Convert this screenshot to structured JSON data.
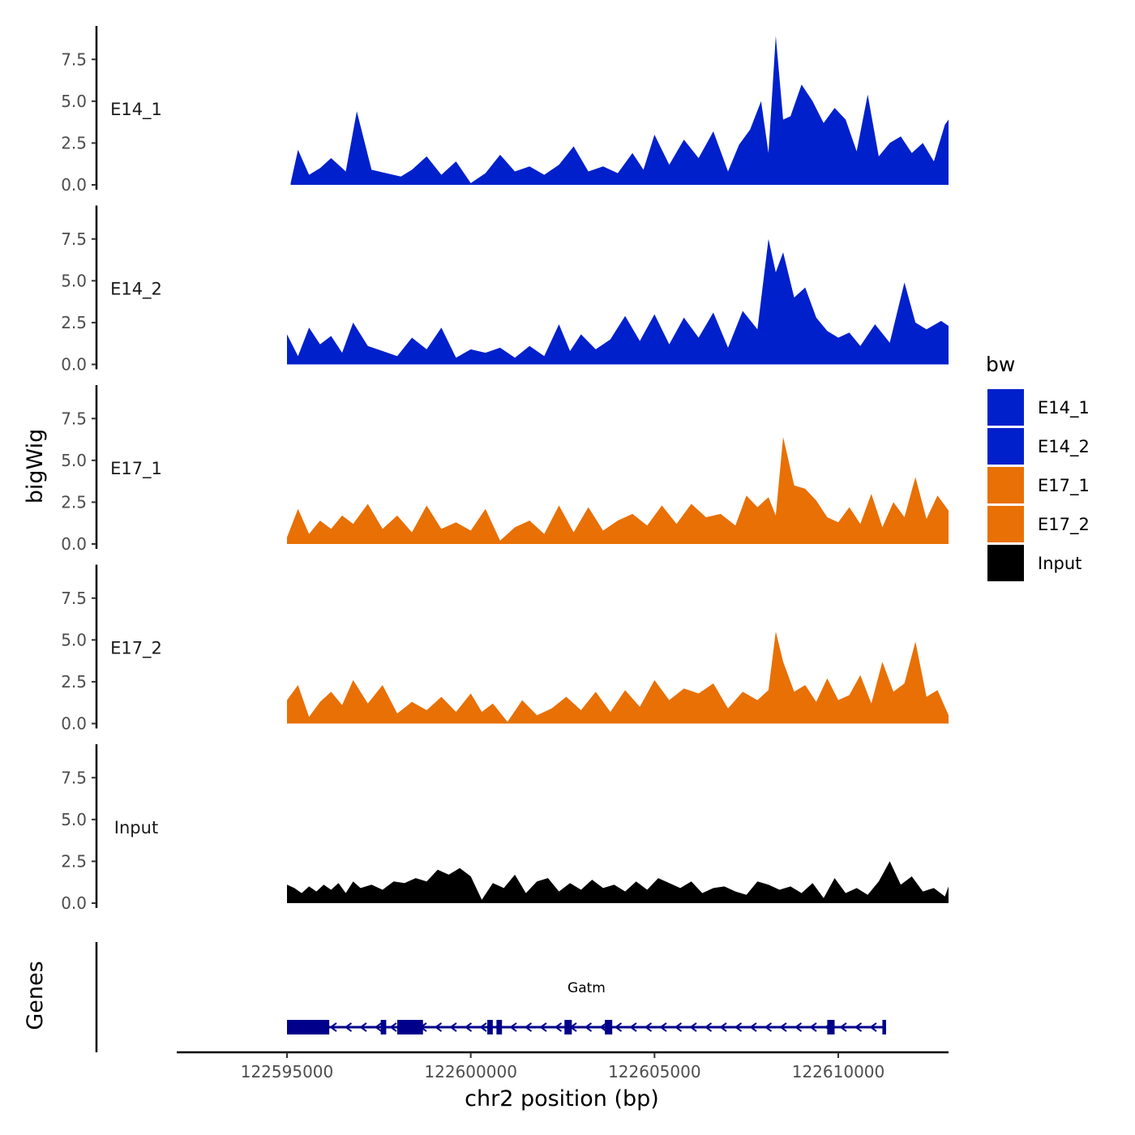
{
  "chart_data": {
    "type": "area",
    "title": "",
    "xlabel": "chr2 position (bp)",
    "ylabel": "bigWig",
    "genes_label": "Genes",
    "xlim": [
      122592000,
      122613000
    ],
    "x_ticks": [
      122595000,
      122600000,
      122605000,
      122610000
    ],
    "x_tick_labels": [
      "122595000",
      "122600000",
      "122605000",
      "122610000"
    ],
    "ylim": [
      0,
      9.5
    ],
    "y_ticks": [
      0,
      2.5,
      5,
      7.5
    ],
    "y_tick_labels": [
      "0.0",
      "2.5",
      "5.0",
      "7.5"
    ],
    "legend": {
      "title": "bw",
      "position": "right",
      "entries": [
        {
          "label": "E14_1",
          "color": "#0020cc"
        },
        {
          "label": "E14_2",
          "color": "#0020cc"
        },
        {
          "label": "E17_1",
          "color": "#e87005"
        },
        {
          "label": "E17_2",
          "color": "#e87005"
        },
        {
          "label": "Input",
          "color": "#000000"
        }
      ]
    },
    "series": [
      {
        "name": "E14_1",
        "color": "#0020cc",
        "x": [
          122595100,
          122595300,
          122595600,
          122595900,
          122596200,
          122596600,
          122596900,
          122597300,
          122597700,
          122598100,
          122598400,
          122598800,
          122599200,
          122599600,
          122600000,
          122600400,
          122600800,
          122601200,
          122601600,
          122602000,
          122602400,
          122602800,
          122603200,
          122603600,
          122604000,
          122604400,
          122604700,
          122605000,
          122605400,
          122605800,
          122606200,
          122606600,
          122607000,
          122607300,
          122607600,
          122607900,
          122608100,
          122608300,
          122608500,
          122608700,
          122609000,
          122609300,
          122609600,
          122609900,
          122610200,
          122610500,
          122610800,
          122611100,
          122611400,
          122611700,
          122612000,
          122612300,
          122612600,
          122612900,
          122613000
        ],
        "values": [
          0.1,
          2.1,
          0.6,
          1.0,
          1.6,
          0.8,
          4.4,
          0.9,
          0.7,
          0.5,
          0.9,
          1.7,
          0.6,
          1.4,
          0.1,
          0.7,
          1.8,
          0.8,
          1.1,
          0.6,
          1.2,
          2.3,
          0.8,
          1.1,
          0.7,
          1.9,
          0.9,
          3.0,
          1.2,
          2.7,
          1.6,
          3.2,
          0.8,
          2.4,
          3.3,
          5.0,
          1.9,
          8.9,
          3.9,
          4.1,
          6.0,
          5.0,
          3.7,
          4.6,
          3.9,
          2.0,
          5.4,
          1.7,
          2.5,
          2.9,
          1.9,
          2.5,
          1.4,
          3.6,
          3.9
        ]
      },
      {
        "name": "E14_2",
        "color": "#0020cc",
        "x": [
          122595000,
          122595300,
          122595600,
          122595900,
          122596200,
          122596500,
          122596800,
          122597200,
          122597600,
          122598000,
          122598400,
          122598800,
          122599200,
          122599600,
          122600000,
          122600400,
          122600800,
          122601200,
          122601600,
          122602000,
          122602400,
          122602700,
          122603000,
          122603400,
          122603800,
          122604200,
          122604600,
          122605000,
          122605400,
          122605800,
          122606200,
          122606600,
          122607000,
          122607400,
          122607800,
          122608100,
          122608300,
          122608500,
          122608800,
          122609100,
          122609400,
          122609700,
          122610000,
          122610300,
          122610600,
          122611000,
          122611400,
          122611800,
          122612100,
          122612400,
          122612800,
          122613000
        ],
        "values": [
          1.8,
          0.5,
          2.2,
          1.2,
          1.7,
          0.7,
          2.5,
          1.1,
          0.8,
          0.5,
          1.6,
          0.9,
          2.2,
          0.4,
          0.9,
          0.7,
          1.0,
          0.4,
          1.1,
          0.5,
          2.4,
          0.8,
          1.8,
          0.9,
          1.5,
          2.9,
          1.4,
          3.0,
          1.2,
          2.8,
          1.6,
          3.1,
          1.0,
          3.2,
          2.1,
          7.5,
          5.5,
          6.7,
          4.0,
          4.6,
          2.8,
          2.0,
          1.6,
          1.9,
          1.1,
          2.4,
          1.3,
          4.9,
          2.5,
          2.1,
          2.6,
          2.3
        ]
      },
      {
        "name": "E17_1",
        "color": "#e87005",
        "x": [
          122595000,
          122595300,
          122595600,
          122595900,
          122596200,
          122596500,
          122596800,
          122597200,
          122597600,
          122598000,
          122598400,
          122598800,
          122599200,
          122599600,
          122600000,
          122600400,
          122600800,
          122601200,
          122601600,
          122602000,
          122602400,
          122602800,
          122603200,
          122603600,
          122604000,
          122604400,
          122604800,
          122605200,
          122605600,
          122606000,
          122606400,
          122606800,
          122607200,
          122607500,
          122607800,
          122608100,
          122608300,
          122608500,
          122608800,
          122609100,
          122609400,
          122609700,
          122610000,
          122610300,
          122610600,
          122610900,
          122611200,
          122611500,
          122611800,
          122612100,
          122612400,
          122612700,
          122613000
        ],
        "values": [
          0.4,
          2.1,
          0.6,
          1.4,
          0.9,
          1.7,
          1.2,
          2.4,
          0.9,
          1.7,
          0.7,
          2.3,
          0.9,
          1.3,
          0.8,
          2.1,
          0.2,
          1.0,
          1.4,
          0.6,
          2.3,
          0.7,
          2.2,
          0.8,
          1.4,
          1.8,
          1.1,
          2.3,
          1.2,
          2.4,
          1.6,
          1.8,
          1.1,
          2.9,
          2.2,
          2.8,
          1.7,
          6.4,
          3.5,
          3.3,
          2.6,
          1.6,
          1.3,
          2.2,
          1.2,
          3.0,
          1.0,
          2.5,
          1.6,
          4.0,
          1.5,
          2.9,
          2.0
        ]
      },
      {
        "name": "E17_2",
        "color": "#e87005",
        "x": [
          122595000,
          122595300,
          122595600,
          122595900,
          122596200,
          122596500,
          122596800,
          122597200,
          122597600,
          122598000,
          122598400,
          122598800,
          122599200,
          122599600,
          122600000,
          122600300,
          122600600,
          122601000,
          122601400,
          122601800,
          122602200,
          122602600,
          122603000,
          122603400,
          122603800,
          122604200,
          122604600,
          122605000,
          122605400,
          122605800,
          122606200,
          122606600,
          122607000,
          122607400,
          122607800,
          122608100,
          122608300,
          122608500,
          122608800,
          122609100,
          122609400,
          122609700,
          122610000,
          122610300,
          122610600,
          122610900,
          122611200,
          122611500,
          122611800,
          122612100,
          122612400,
          122612700,
          122613000
        ],
        "values": [
          1.4,
          2.3,
          0.4,
          1.3,
          1.9,
          1.1,
          2.6,
          1.2,
          2.3,
          0.6,
          1.3,
          0.8,
          1.6,
          0.7,
          1.8,
          0.7,
          1.2,
          0.1,
          1.4,
          0.5,
          0.9,
          1.6,
          0.8,
          1.9,
          0.7,
          2.0,
          1.0,
          2.6,
          1.4,
          2.1,
          1.8,
          2.4,
          0.9,
          1.9,
          1.4,
          2.0,
          5.5,
          3.7,
          1.9,
          2.3,
          1.3,
          2.7,
          1.4,
          1.7,
          2.9,
          1.2,
          3.7,
          1.9,
          2.4,
          4.9,
          1.6,
          2.0,
          0.5
        ]
      },
      {
        "name": "Input",
        "color": "#000000",
        "x": [
          122595000,
          122595200,
          122595400,
          122595600,
          122595800,
          122596000,
          122596200,
          122596400,
          122596600,
          122596800,
          122597000,
          122597300,
          122597600,
          122597900,
          122598200,
          122598500,
          122598800,
          122599100,
          122599400,
          122599700,
          122600000,
          122600300,
          122600600,
          122600900,
          122601200,
          122601500,
          122601800,
          122602100,
          122602400,
          122602700,
          122603000,
          122603300,
          122603600,
          122603900,
          122604200,
          122604500,
          122604800,
          122605100,
          122605400,
          122605700,
          122606000,
          122606300,
          122606600,
          122606900,
          122607200,
          122607500,
          122607800,
          122608100,
          122608400,
          122608700,
          122609000,
          122609300,
          122609600,
          122609900,
          122610200,
          122610500,
          122610800,
          122611100,
          122611400,
          122611700,
          122612000,
          122612300,
          122612600,
          122612900,
          122613000
        ],
        "values": [
          1.1,
          0.9,
          0.6,
          1.0,
          0.7,
          1.1,
          0.8,
          1.2,
          0.6,
          1.3,
          0.9,
          1.1,
          0.8,
          1.3,
          1.2,
          1.5,
          1.3,
          2.0,
          1.7,
          2.1,
          1.6,
          0.2,
          1.2,
          0.9,
          1.7,
          0.6,
          1.3,
          1.5,
          0.7,
          1.2,
          0.8,
          1.4,
          0.9,
          1.1,
          0.7,
          1.3,
          0.8,
          1.5,
          1.2,
          0.9,
          1.3,
          0.6,
          0.9,
          1.0,
          0.7,
          0.5,
          1.3,
          1.1,
          0.8,
          1.0,
          0.6,
          1.2,
          0.3,
          1.5,
          0.6,
          0.9,
          0.5,
          1.3,
          2.5,
          1.1,
          1.6,
          0.7,
          0.9,
          0.4,
          1.0
        ]
      }
    ],
    "genes": [
      {
        "name": "Gatm",
        "strand": "-",
        "start": 122595000,
        "end": 122611300,
        "exons": [
          [
            122595000,
            122596150
          ],
          [
            122597550,
            122597700
          ],
          [
            122598000,
            122598700
          ],
          [
            122600450,
            122600600
          ],
          [
            122600700,
            122600850
          ],
          [
            122602550,
            122602750
          ],
          [
            122603650,
            122603850
          ],
          [
            122609700,
            122609900
          ],
          [
            122611200,
            122611300
          ]
        ]
      }
    ]
  }
}
